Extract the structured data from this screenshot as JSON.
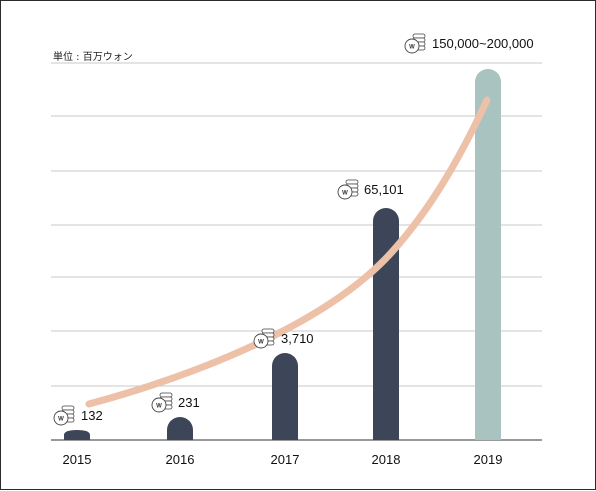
{
  "unit_label": "単位 : 百万ウォン",
  "colors": {
    "actual_bar": "#3d4559",
    "forecast_bar": "#a8c3c0",
    "trend": "#edc0a8",
    "grid": "#c9c9c9"
  },
  "chart_data": {
    "type": "bar",
    "categories": [
      "2015",
      "2016",
      "2017",
      "2018",
      "2019"
    ],
    "values": [
      132,
      231,
      3710,
      65101,
      200000
    ],
    "value_labels": [
      "132",
      "231",
      "3,710",
      "65,101",
      "150,000~200,000"
    ],
    "forecast_index": 4,
    "trend_curve": true,
    "value_icon": "won-coin-stack-icon",
    "grid": true
  }
}
